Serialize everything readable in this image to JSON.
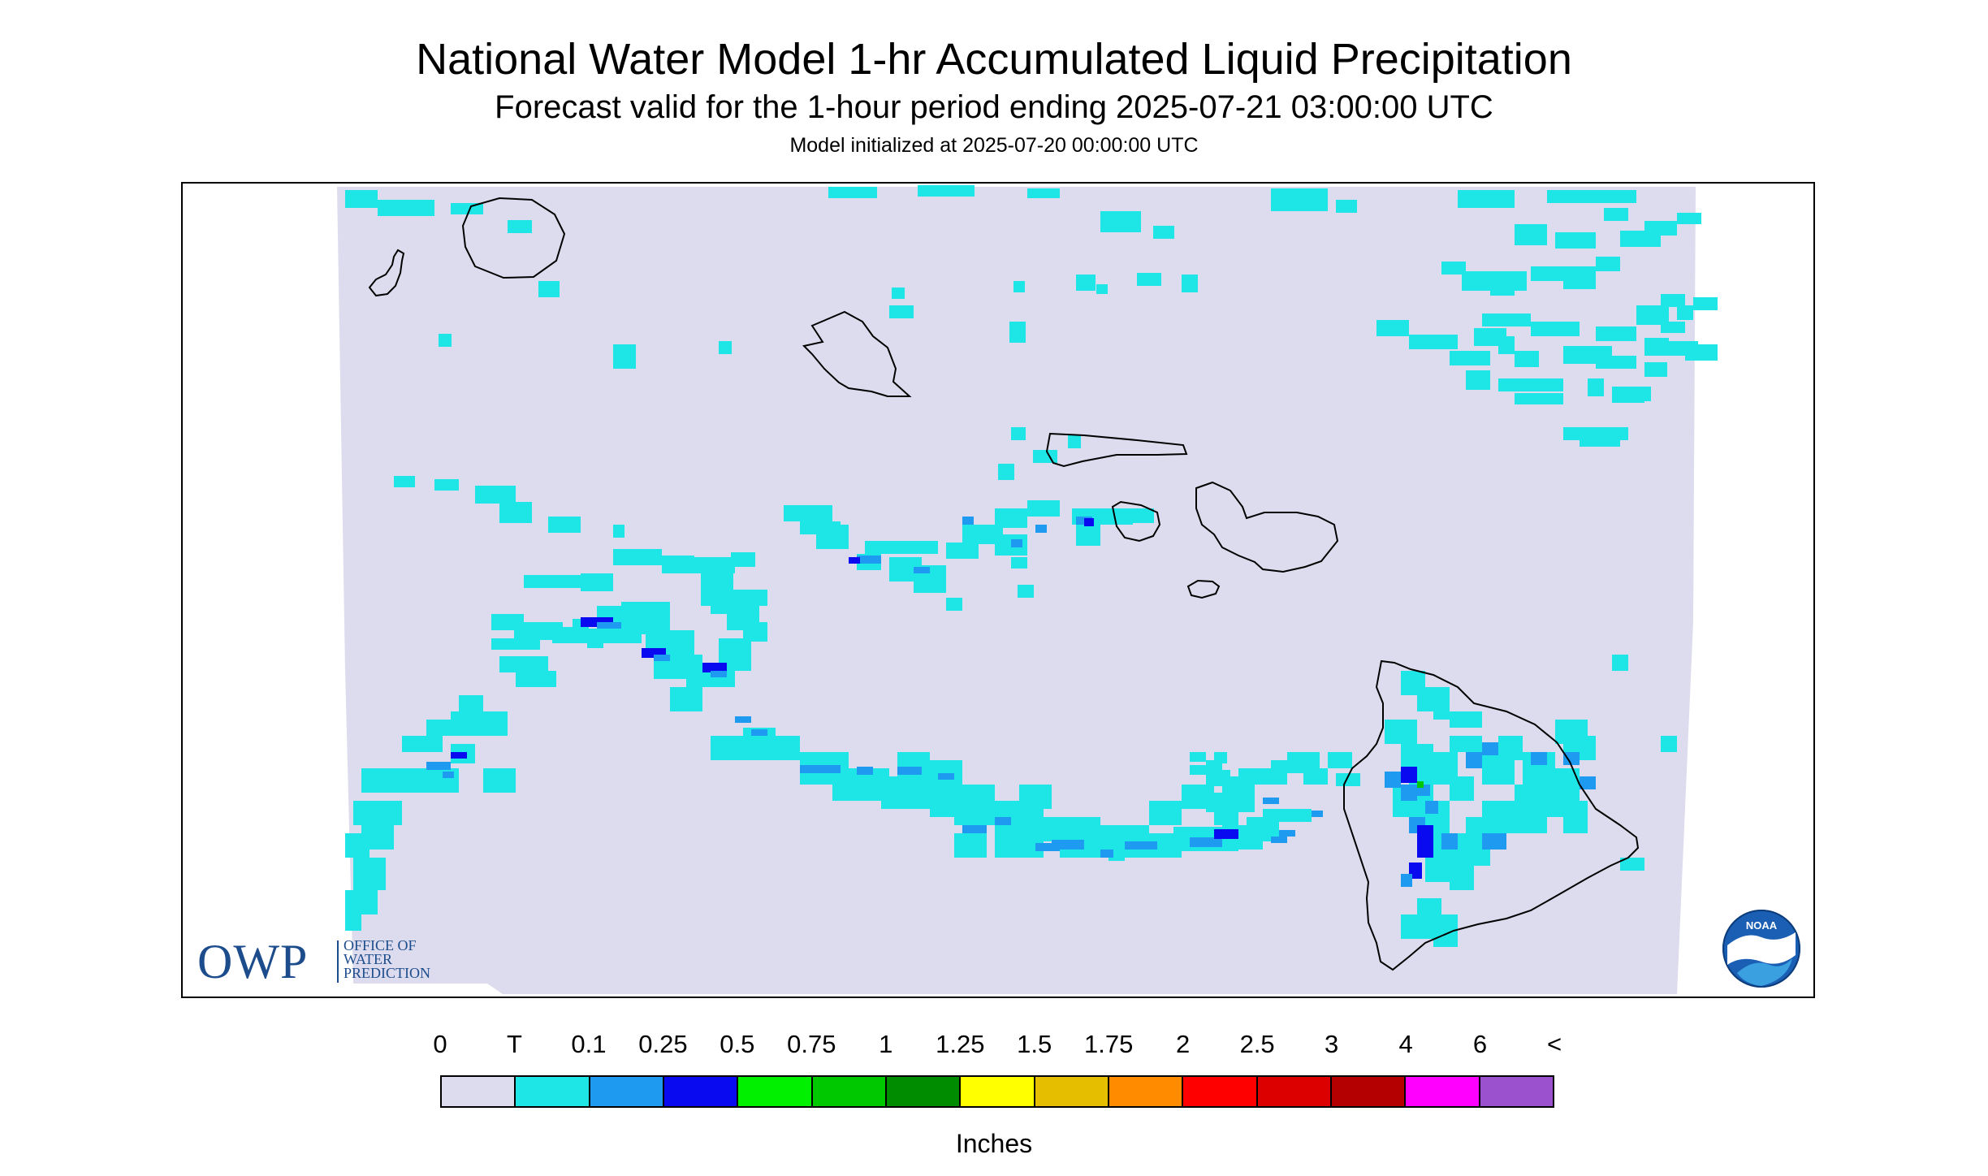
{
  "header": {
    "title": "National Water Model 1-hr Accumulated Liquid Precipitation",
    "subtitle": "Forecast valid for the 1-hour period ending 2025-07-21 03:00:00 UTC",
    "init_line": "Model initialized at 2025-07-20 00:00:00 UTC"
  },
  "logos": {
    "owp_letters": "OWP",
    "owp_line1": "OFFICE OF",
    "owp_line2": "WATER",
    "owp_line3": "PREDICTION",
    "noaa": "NOAA"
  },
  "colors": {
    "domain_background": "#dcdcee",
    "coastline": "#000000"
  },
  "legend": {
    "units": "Inches",
    "ticks": [
      "0",
      "T",
      "0.1",
      "0.25",
      "0.5",
      "0.75",
      "1",
      "1.25",
      "1.5",
      "1.75",
      "2",
      "2.5",
      "3",
      "4",
      "6",
      "<"
    ],
    "colors": [
      "#dcdcee",
      "#1ee6e6",
      "#1e9bf0",
      "#0a0af0",
      "#00f000",
      "#00c800",
      "#008c00",
      "#ffff00",
      "#e6be00",
      "#ff8c00",
      "#ff0000",
      "#dc0000",
      "#b40000",
      "#ff00ff",
      "#9b50cd"
    ]
  },
  "regions": [
    "Kauai",
    "Niihau",
    "Oahu",
    "Molokai",
    "Lanai",
    "Maui",
    "Kahoolawe",
    "Hawaii"
  ]
}
